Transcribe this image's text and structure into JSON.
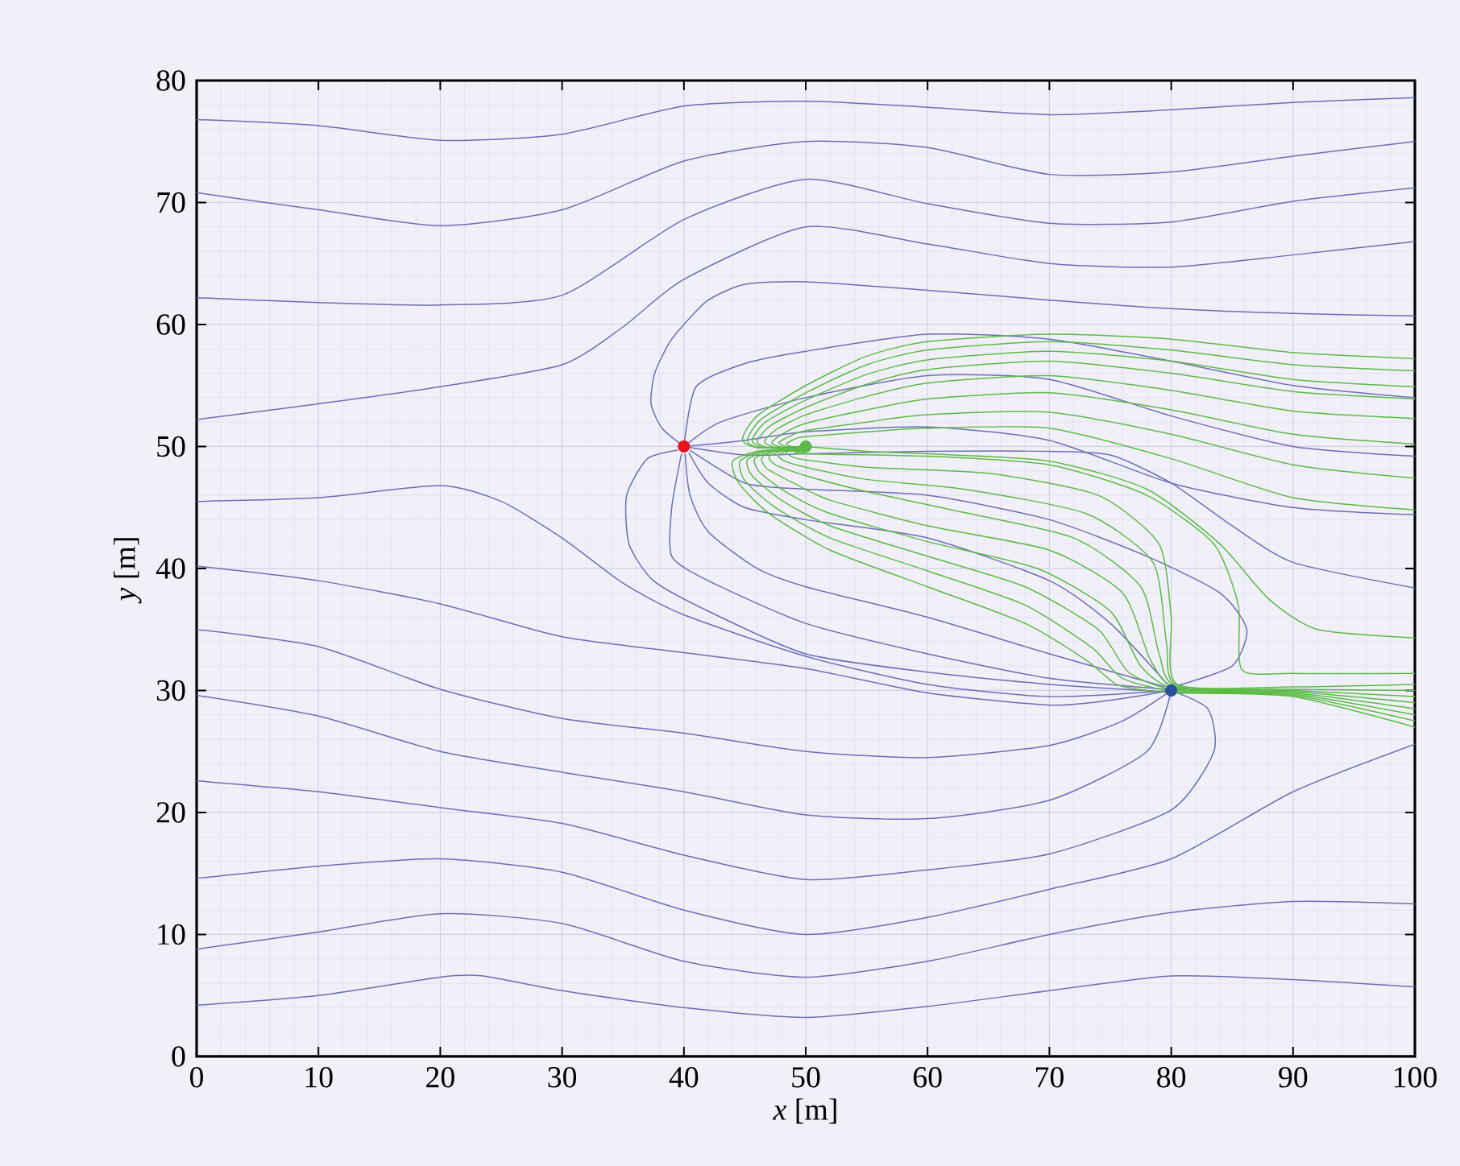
{
  "chart_data": {
    "type": "line",
    "xlabel": "*x* [m]",
    "ylabel": "*y* [m]",
    "xlim": [
      0,
      100
    ],
    "ylim": [
      0,
      80
    ],
    "xticks": [
      0,
      10,
      20,
      30,
      40,
      50,
      60,
      70,
      80,
      90,
      100
    ],
    "yticks": [
      0,
      10,
      20,
      30,
      40,
      50,
      60,
      70,
      80
    ],
    "grid": true,
    "series": [
      {
        "color": "#6a6fb8",
        "x": [
          0,
          10,
          20,
          30,
          40,
          50,
          60,
          70,
          80,
          90,
          100
        ],
        "values": [
          76.8,
          76.3,
          75.1,
          75.6,
          77.9,
          78.3,
          77.8,
          77.2,
          77.6,
          78.2,
          78.6
        ]
      },
      {
        "color": "#6a6fb8",
        "x": [
          0,
          10,
          20,
          30,
          40,
          50,
          60,
          70,
          80,
          90,
          100
        ],
        "values": [
          70.8,
          69.4,
          68.1,
          69.4,
          73.4,
          75.0,
          74.5,
          72.3,
          72.5,
          73.8,
          75.0
        ]
      },
      {
        "color": "#6a6fb8",
        "x": [
          0,
          10,
          20,
          30,
          40,
          50,
          60,
          70,
          80,
          90,
          100
        ],
        "values": [
          62.2,
          61.8,
          61.6,
          62.4,
          68.6,
          71.9,
          69.9,
          68.3,
          68.4,
          70.1,
          71.2
        ]
      },
      {
        "color": "#6a6fb8",
        "x": [
          0,
          10,
          20,
          30,
          35,
          40,
          50,
          60,
          70,
          80,
          90,
          100
        ],
        "values": [
          52.2,
          53.5,
          54.9,
          56.7,
          59.8,
          63.7,
          68.0,
          66.6,
          65.0,
          64.7,
          65.7,
          66.8
        ]
      },
      {
        "color": "#6a6fb8",
        "x": [
          40,
          38.2,
          37.3,
          37.6,
          38.8,
          40,
          42,
          45,
          50,
          60,
          70,
          80,
          90,
          100
        ],
        "values": [
          50,
          51.5,
          53.5,
          56,
          58.5,
          60,
          62,
          63.3,
          63.5,
          62.8,
          62.0,
          61.3,
          60.9,
          60.7
        ]
      },
      {
        "color": "#6a6fb8",
        "x": [
          40,
          41,
          45,
          50,
          60,
          70,
          80,
          90,
          100
        ],
        "values": [
          50,
          54.9,
          56.8,
          57.8,
          59.2,
          58.8,
          57,
          55,
          54
        ]
      },
      {
        "color": "#6a6fb8",
        "x": [
          40,
          43,
          50,
          60,
          70,
          80,
          90,
          100
        ],
        "values": [
          50,
          52,
          54,
          55.8,
          55.5,
          52.5,
          50,
          49.2
        ]
      },
      {
        "color": "#6a6fb8",
        "x": [
          40,
          45,
          50,
          60,
          70,
          80,
          90,
          100
        ],
        "values": [
          50,
          50.5,
          51.2,
          51.6,
          50.5,
          47,
          45,
          44.4
        ]
      },
      {
        "color": "#6a6fb8",
        "x": [
          40,
          45,
          50,
          60,
          70,
          75,
          80,
          85,
          90,
          100
        ],
        "values": [
          50,
          49.3,
          49.4,
          49.6,
          49.6,
          49.3,
          47,
          43.5,
          40.5,
          38.4
        ]
      },
      {
        "color": "#6a6fb8",
        "x": [
          40.5,
          45,
          50,
          60,
          70,
          78,
          84,
          86.2,
          85,
          80.5
        ],
        "values": [
          49.7,
          47,
          46.5,
          46,
          44,
          41,
          38,
          35,
          32,
          30.4
        ]
      },
      {
        "color": "#6a6fb8",
        "x": [
          40.4,
          42,
          45,
          50,
          60,
          70,
          75,
          79.7
        ],
        "values": [
          49.5,
          47,
          45,
          44,
          42.5,
          39,
          35.5,
          30.5
        ]
      },
      {
        "color": "#6a6fb8",
        "x": [
          40.1,
          40.5,
          42,
          46,
          50,
          60,
          70,
          79.5
        ],
        "values": [
          49.4,
          46,
          43,
          40,
          38.5,
          36,
          33,
          30.3
        ]
      },
      {
        "color": "#6a6fb8",
        "x": [
          39.8,
          39,
          39,
          42,
          50,
          60,
          70,
          79.5
        ],
        "values": [
          49.4,
          45,
          41,
          39,
          35.5,
          33,
          31,
          30.1
        ]
      },
      {
        "color": "#6a6fb8",
        "x": [
          39.5,
          37,
          35.3,
          35.5,
          37.5,
          42,
          50,
          60,
          70,
          79.5
        ],
        "values": [
          49.7,
          49,
          46,
          42,
          39,
          36.5,
          33,
          31.5,
          30.5,
          29.9
        ]
      },
      {
        "color": "#6a6fb8",
        "x": [
          0,
          10,
          20,
          25,
          30,
          35,
          40,
          50,
          60,
          70,
          80
        ],
        "values": [
          45.5,
          45.8,
          46.8,
          45.5,
          42.5,
          38.8,
          36.2,
          32.8,
          30.5,
          29.5,
          30
        ]
      },
      {
        "color": "#6a6fb8",
        "x": [
          0,
          10,
          20,
          30,
          40,
          50,
          60,
          70,
          75,
          80
        ],
        "values": [
          40.2,
          39,
          37.1,
          34.4,
          33.1,
          31.8,
          29.8,
          28.8,
          29.2,
          30
        ]
      },
      {
        "color": "#6a6fb8",
        "x": [
          0,
          10,
          20,
          30,
          40,
          50,
          60,
          70,
          76,
          80
        ],
        "values": [
          35,
          33.6,
          30.1,
          27.7,
          26.5,
          25,
          24.5,
          25.5,
          27.5,
          30
        ]
      },
      {
        "color": "#6a6fb8",
        "x": [
          0,
          10,
          20,
          30,
          40,
          50,
          60,
          70,
          78,
          80
        ],
        "values": [
          29.6,
          27.9,
          25,
          23.3,
          21.7,
          19.8,
          19.5,
          21,
          25,
          30
        ]
      },
      {
        "color": "#6a6fb8",
        "x": [
          0,
          10,
          20,
          30,
          40,
          50,
          60,
          70,
          80,
          83.5,
          83,
          80
        ],
        "values": [
          22.6,
          21.7,
          20.4,
          19.1,
          16.5,
          14.5,
          15.3,
          16.6,
          20.2,
          25,
          28.5,
          30
        ]
      },
      {
        "color": "#6a6fb8",
        "x": [
          0,
          10,
          20,
          30,
          40,
          50,
          60,
          70,
          80,
          90,
          100
        ],
        "values": [
          14.6,
          15.6,
          16.2,
          15.1,
          12.0,
          10.0,
          11.4,
          13.7,
          16.2,
          21.7,
          25.6
        ]
      },
      {
        "color": "#6a6fb8",
        "x": [
          0,
          10,
          20,
          30,
          40,
          50,
          60,
          70,
          80,
          90,
          100
        ],
        "values": [
          8.8,
          10.2,
          11.7,
          10.9,
          7.8,
          6.5,
          7.8,
          10.0,
          11.8,
          12.7,
          12.5
        ]
      },
      {
        "color": "#6a6fb8",
        "x": [
          0,
          10,
          20,
          23.5,
          30,
          40,
          50,
          60,
          70,
          80,
          90,
          100
        ],
        "values": [
          4.2,
          5.0,
          6.5,
          6.6,
          5.4,
          4.0,
          3.2,
          4.1,
          5.4,
          6.6,
          6.3,
          5.7
        ]
      },
      {
        "color": "#5cba46",
        "x": [
          50,
          46,
          44.8,
          46,
          50,
          55,
          60,
          70,
          80,
          90,
          100
        ],
        "values": [
          50,
          49.9,
          50.6,
          52.5,
          55,
          57.4,
          58.6,
          59.2,
          58.8,
          57.7,
          57.2
        ]
      },
      {
        "color": "#5cba46",
        "x": [
          50,
          46.2,
          45.2,
          46.3,
          50,
          55,
          60,
          70,
          80,
          90,
          100
        ],
        "values": [
          50,
          49.9,
          50.5,
          52.2,
          54.4,
          56.7,
          57.9,
          58.6,
          57.9,
          56.7,
          56.2
        ]
      },
      {
        "color": "#5cba46",
        "x": [
          50,
          46.6,
          45.6,
          46.7,
          50,
          55,
          60,
          70,
          80,
          90,
          100
        ],
        "values": [
          50,
          49.9,
          50.5,
          52,
          53.8,
          55.9,
          57.1,
          57.8,
          57,
          55.5,
          54.9
        ]
      },
      {
        "color": "#5cba46",
        "x": [
          50,
          47,
          46,
          47.1,
          50,
          55,
          60,
          70,
          80,
          90,
          100
        ],
        "values": [
          50,
          49.9,
          50.4,
          51.7,
          53.2,
          55.1,
          56.3,
          57,
          56,
          54.5,
          53.9
        ]
      },
      {
        "color": "#5cba46",
        "x": [
          50,
          47.6,
          46.6,
          47.6,
          50,
          55,
          60,
          70,
          80,
          90,
          100
        ],
        "values": [
          50,
          49.9,
          50.4,
          51.4,
          52.6,
          54.1,
          55.2,
          55.8,
          54.6,
          52.9,
          52.3
        ]
      },
      {
        "color": "#5cba46",
        "x": [
          50,
          48.2,
          47.2,
          48.2,
          50,
          55,
          60,
          70,
          80,
          90,
          100
        ],
        "values": [
          50,
          49.9,
          50.3,
          51.1,
          51.9,
          53,
          53.9,
          54.4,
          53,
          51,
          50.2
        ]
      },
      {
        "color": "#5cba46",
        "x": [
          50,
          48.7,
          47.8,
          48.8,
          50,
          55,
          60,
          70,
          80,
          90,
          100
        ],
        "values": [
          50,
          49.9,
          50.3,
          50.9,
          51.3,
          52,
          52.6,
          52.8,
          51,
          48.5,
          47.4
        ]
      },
      {
        "color": "#5cba46",
        "x": [
          50,
          49.2,
          48.4,
          49.3,
          50,
          55,
          60,
          70,
          80,
          90,
          100
        ],
        "values": [
          50,
          49.9,
          50.2,
          50.7,
          50.8,
          51.2,
          51.5,
          51.5,
          49,
          45.8,
          44.8
        ]
      },
      {
        "color": "#5cba46",
        "x": [
          49.5,
          46,
          44,
          44.5,
          47,
          52,
          60,
          68,
          73,
          75.5,
          78,
          80.5,
          90,
          100
        ],
        "values": [
          49.9,
          49.6,
          48.8,
          47,
          44.5,
          41.5,
          38.5,
          35.5,
          32.5,
          30.5,
          30,
          29.8,
          29.5,
          27
        ]
      },
      {
        "color": "#5cba46",
        "x": [
          49.6,
          46.4,
          44.6,
          45,
          47.5,
          52,
          60,
          68,
          73.5,
          76,
          80.5,
          90,
          100
        ],
        "values": [
          49.8,
          49.6,
          48.8,
          47.2,
          45,
          42.5,
          39.8,
          37,
          33.5,
          31,
          29.9,
          29.6,
          27.5
        ]
      },
      {
        "color": "#5cba46",
        "x": [
          49.6,
          46.8,
          45.2,
          45.6,
          48,
          52,
          60,
          68,
          74,
          76.5,
          80.5,
          90,
          100
        ],
        "values": [
          49.7,
          49.6,
          48.9,
          47.6,
          45.6,
          43.5,
          41,
          38.5,
          35,
          31.5,
          30,
          29.7,
          28
        ]
      },
      {
        "color": "#5cba46",
        "x": [
          49.7,
          47.3,
          45.8,
          46.2,
          48.5,
          52,
          60,
          69,
          75,
          77.5,
          80.5,
          90,
          100
        ],
        "values": [
          49.6,
          49.6,
          49,
          47.9,
          46.2,
          44.5,
          42.2,
          40,
          36.5,
          32,
          30.1,
          29.8,
          28.5
        ]
      },
      {
        "color": "#5cba46",
        "x": [
          49.8,
          47.8,
          46.4,
          46.8,
          49,
          52,
          60,
          70,
          76,
          78.3,
          80.5,
          90,
          100
        ],
        "values": [
          49.6,
          49.7,
          49.1,
          48.2,
          47,
          45.6,
          43.5,
          41.5,
          38,
          32.5,
          30.2,
          29.9,
          29
        ]
      },
      {
        "color": "#5cba46",
        "x": [
          49.8,
          48.3,
          47,
          47.5,
          50,
          55,
          62,
          72,
          77.5,
          79,
          80.5,
          90,
          100
        ],
        "values": [
          49.5,
          49.7,
          49.2,
          48.5,
          47.6,
          46.3,
          44.8,
          42.5,
          38.5,
          33,
          30.3,
          30,
          29.5
        ]
      },
      {
        "color": "#5cba46",
        "x": [
          49.9,
          48.8,
          47.7,
          48.3,
          50,
          55,
          63,
          73,
          78.5,
          79.6,
          80.5,
          90,
          100
        ],
        "values": [
          49.5,
          49.7,
          49.3,
          48.8,
          48.3,
          47.3,
          46.5,
          44.5,
          40.5,
          34,
          30.4,
          30.1,
          30
        ]
      },
      {
        "color": "#5cba46",
        "x": [
          49.9,
          49.2,
          48.4,
          49,
          50,
          55,
          65,
          74,
          79,
          80,
          80.5,
          90,
          100
        ],
        "values": [
          49.4,
          49.8,
          49.5,
          49.1,
          48.9,
          48.3,
          47.8,
          46,
          42,
          36,
          30.5,
          30.3,
          30.5
        ]
      },
      {
        "color": "#5cba46",
        "x": [
          50,
          49.6,
          49.2,
          50,
          60,
          70,
          78,
          83.5,
          85.5,
          85.8,
          90,
          100
        ],
        "values": [
          50,
          49.8,
          49.6,
          49.4,
          49.2,
          48.5,
          46,
          42,
          37,
          31.7,
          31.4,
          31.4
        ]
      },
      {
        "color": "#5cba46",
        "x": [
          50,
          55,
          60,
          70,
          78,
          84,
          88,
          92,
          100
        ],
        "values": [
          50,
          49.6,
          49.4,
          48.8,
          46.5,
          42,
          37.5,
          35,
          34.3
        ]
      },
      {
        "type": "scatter",
        "marker": "circle",
        "color": "#e8141c",
        "x": [
          40
        ],
        "values": [
          50
        ]
      },
      {
        "type": "scatter",
        "marker": "circle",
        "color": "#5cba46",
        "x": [
          50
        ],
        "values": [
          50
        ]
      },
      {
        "type": "scatter",
        "marker": "circle",
        "color": "#2a4ea0",
        "x": [
          80
        ],
        "values": [
          30
        ]
      }
    ]
  }
}
